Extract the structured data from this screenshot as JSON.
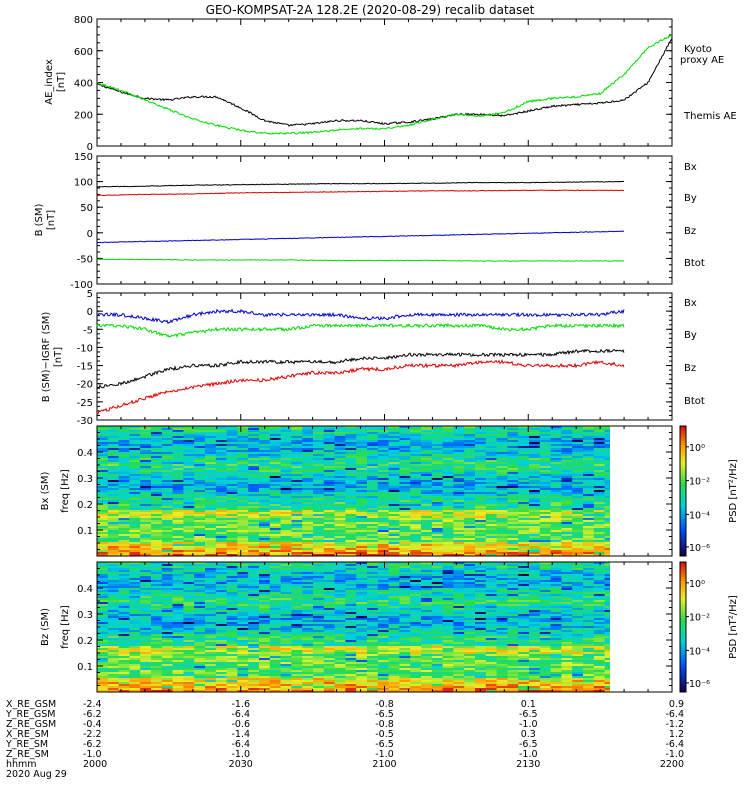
{
  "title": "GEO-KOMPSAT-2A 128.2E (2020-08-29) recalib dataset",
  "colors": {
    "black": "#000000",
    "green": "#00dd00",
    "red": "#dd0000",
    "blue": "#0000cc"
  },
  "chart_data": [
    {
      "type": "line",
      "ylabel": "AE_index [nT]",
      "ylim": [
        0,
        800
      ],
      "yticks": [
        "0",
        "200",
        "400",
        "600",
        "800"
      ],
      "x": [
        2000,
        2005,
        2010,
        2015,
        2020,
        2025,
        2030,
        2035,
        2040,
        2045,
        2050,
        2055,
        2100,
        2105,
        2110,
        2115,
        2120,
        2125,
        2130,
        2135,
        2140,
        2145,
        2150,
        2155,
        2200
      ],
      "series": [
        {
          "name": "Themis AE",
          "color": "black",
          "values": [
            390,
            340,
            300,
            290,
            310,
            310,
            240,
            160,
            130,
            140,
            160,
            160,
            140,
            150,
            170,
            200,
            200,
            190,
            220,
            250,
            260,
            270,
            290,
            400,
            680
          ]
        },
        {
          "name": "Kyoto proxy AE",
          "color": "green",
          "values": [
            400,
            350,
            290,
            230,
            170,
            130,
            100,
            80,
            80,
            85,
            100,
            110,
            110,
            130,
            170,
            200,
            190,
            210,
            280,
            300,
            310,
            330,
            450,
            620,
            700
          ]
        }
      ],
      "legend": [
        "Kyoto proxy AE",
        "Themis AE"
      ]
    },
    {
      "type": "line",
      "ylabel": "B (SM) [nT]",
      "ylim": [
        -100,
        150
      ],
      "yticks": [
        "-100",
        "-50",
        "0",
        "50",
        "100",
        "150"
      ],
      "x": [
        2000,
        2010,
        2020,
        2030,
        2040,
        2050,
        2100,
        2110,
        2120,
        2130,
        2140,
        2150
      ],
      "series": [
        {
          "name": "Bx",
          "color": "blue",
          "values": [
            -19,
            -17,
            -15,
            -13,
            -11,
            -9,
            -7,
            -5,
            -3,
            -1,
            1,
            3
          ]
        },
        {
          "name": "By",
          "color": "green",
          "values": [
            -52,
            -52,
            -53,
            -53,
            -53,
            -54,
            -54,
            -54,
            -55,
            -55,
            -55,
            -55
          ]
        },
        {
          "name": "Bz",
          "color": "red",
          "values": [
            73,
            75,
            76,
            78,
            79,
            80,
            81,
            82,
            82,
            83,
            83,
            83
          ]
        },
        {
          "name": "Btot",
          "color": "black",
          "values": [
            90,
            91,
            93,
            94,
            95,
            96,
            96,
            97,
            98,
            98,
            99,
            100
          ]
        }
      ],
      "legend": [
        "Bx",
        "By",
        "Bz",
        "Btot"
      ]
    },
    {
      "type": "line",
      "ylabel": "B (SM)−IGRF (SM) [nT]",
      "ylim": [
        -30,
        5
      ],
      "yticks": [
        "-30",
        "-25",
        "-20",
        "-15",
        "-10",
        "-5",
        "0",
        "5"
      ],
      "x": [
        2000,
        2005,
        2010,
        2015,
        2020,
        2025,
        2030,
        2035,
        2040,
        2045,
        2050,
        2055,
        2100,
        2105,
        2110,
        2115,
        2120,
        2125,
        2130,
        2135,
        2140,
        2145,
        2150
      ],
      "series": [
        {
          "name": "Bx",
          "color": "blue",
          "values": [
            -1,
            -1,
            -2,
            -3,
            -1,
            0,
            0,
            -1,
            -1,
            -1,
            -1,
            -2,
            -2,
            -1,
            -1,
            -1,
            -1,
            -1,
            -1,
            -1,
            -1,
            -1,
            0
          ]
        },
        {
          "name": "By",
          "color": "green",
          "values": [
            -4,
            -4,
            -5,
            -7,
            -6,
            -5,
            -5,
            -5,
            -5,
            -4,
            -4,
            -4,
            -4,
            -4,
            -4,
            -4,
            -4,
            -5,
            -5,
            -4,
            -4,
            -4,
            -4
          ]
        },
        {
          "name": "Btot",
          "color": "black",
          "values": [
            -21,
            -20,
            -18,
            -16,
            -15,
            -15,
            -14,
            -14,
            -14,
            -14,
            -14,
            -13,
            -13,
            -12,
            -12,
            -12,
            -12,
            -12,
            -12,
            -12,
            -11,
            -11,
            -11
          ]
        },
        {
          "name": "Bz",
          "color": "red",
          "values": [
            -28,
            -26,
            -24,
            -22,
            -21,
            -20,
            -19,
            -19,
            -18,
            -17,
            -17,
            -16,
            -16,
            -15,
            -15,
            -15,
            -14,
            -14,
            -15,
            -15,
            -15,
            -14,
            -15
          ]
        }
      ],
      "legend": [
        "Bx",
        "By",
        "Bz",
        "Btot"
      ]
    },
    {
      "type": "heatmap",
      "ylabel": "Bx (SM) freq [Hz]",
      "ylim": [
        0,
        0.5
      ],
      "yticks": [
        "0.1",
        "0.2",
        "0.3",
        "0.4"
      ],
      "colorbar_label": "PSD [nT²/Hz]",
      "colorbar_ticks": [
        "10⁰",
        "10⁻²",
        "10⁻⁴",
        "10⁻⁶"
      ]
    },
    {
      "type": "heatmap",
      "ylabel": "Bz (SM) freq [Hz]",
      "ylim": [
        0,
        0.5
      ],
      "yticks": [
        "0.1",
        "0.2",
        "0.3",
        "0.4"
      ],
      "colorbar_label": "PSD [nT²/Hz]",
      "colorbar_ticks": [
        "10⁰",
        "10⁻²",
        "10⁻⁴",
        "10⁻⁶"
      ]
    }
  ],
  "ephemeris": {
    "labels": [
      "X_RE_GSM",
      "Y_RE_GSM",
      "Z_RE_GSM",
      "X_RE_SM",
      "Y_RE_SM",
      "Z_RE_SM",
      "hhmm",
      "2020 Aug 29"
    ],
    "columns": [
      [
        "-2.4",
        "-6.2",
        "-0.4",
        "-2.2",
        "-6.2",
        "-1.0",
        "2000"
      ],
      [
        "-1.6",
        "-6.4",
        "-0.6",
        "-1.4",
        "-6.4",
        "-1.0",
        "2030"
      ],
      [
        "-0.8",
        "-6.5",
        "-0.8",
        "-0.5",
        "-6.5",
        "-1.0",
        "2100"
      ],
      [
        "0.1",
        "-6.5",
        "-1.0",
        "0.3",
        "-6.5",
        "-1.0",
        "2130"
      ],
      [
        "0.9",
        "-6.4",
        "-1.2",
        "1.2",
        "-6.4",
        "-1.0",
        "2200"
      ]
    ]
  }
}
